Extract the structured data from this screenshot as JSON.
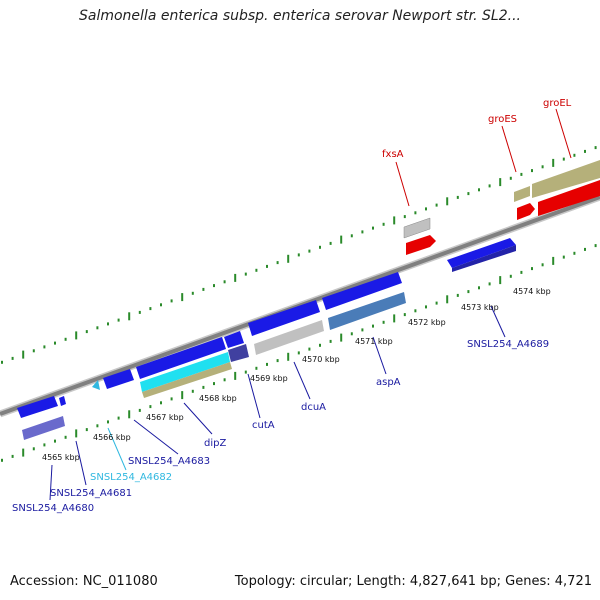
{
  "title": "Salmonella enterica subsp. enterica serovar Newport str. SL2...",
  "footer": {
    "accession": "Accession: NC_011080",
    "summary": "Topology: circular; Length: 4,827,641 bp; Genes: 4,721"
  },
  "colors": {
    "backbone": "#808080",
    "cds_blue": "#1a1ae6",
    "highlight_red": "#e60000",
    "rna_khaki": "#b5b07a",
    "pseudo_gray": "#c0c0c0",
    "steel": "#4a7cb8",
    "slate": "#6a6acc",
    "cyan": "#20e0f0",
    "tick_green": "#2a8a2a",
    "label_red": "#cc0000",
    "label_blue": "#1a1aa0",
    "label_cyan": "#30b8e0"
  },
  "tick_labels": [
    "4565 kbp",
    "4566 kbp",
    "4567 kbp",
    "4568 kbp",
    "4569 kbp",
    "4570 kbp",
    "4571 kbp",
    "4572 kbp",
    "4573 kbp",
    "4574 kbp"
  ],
  "gene_labels": {
    "fxsA": "fxsA",
    "groES": "groES",
    "groEL": "groEL",
    "A4689": "SNSL254_A4689",
    "aspA": "aspA",
    "dcuA": "dcuA",
    "cutA": "cutA",
    "dipZ": "dipZ",
    "A4683": "SNSL254_A4683",
    "A4682": "SNSL254_A4682",
    "A4681": "SNSL254_A4681",
    "A4680": "SNSL254_A4680"
  }
}
